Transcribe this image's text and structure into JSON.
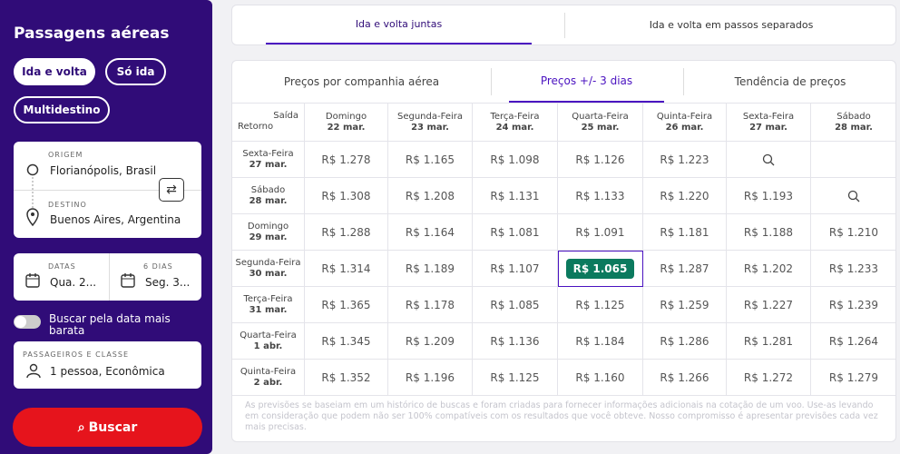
{
  "sidebar": {
    "title": "Passagens aéreas",
    "trip_types": [
      "Ida e volta",
      "Só ida",
      "Multidestino"
    ],
    "origin": {
      "label": "ORIGEM",
      "value": "Florianópolis, Brasil"
    },
    "destination": {
      "label": "DESTINO",
      "value": "Buenos Aires, Argentina"
    },
    "dates": {
      "label": "DATAS",
      "value": "Qua. 2..."
    },
    "duration": {
      "label": "6 DIAS",
      "value": "Seg. 3..."
    },
    "cheapest_toggle": "Buscar pela data mais barata",
    "passengers": {
      "label": "PASSAGEIROS E CLASSE",
      "value": "1 pessoa, Econômica"
    },
    "search_button": "Buscar"
  },
  "top_tabs": [
    "Ida e volta juntas",
    "Ida e volta em passos separados"
  ],
  "inner_tabs": [
    "Preços por companhia aérea",
    "Preços +/- 3 dias",
    "Tendência de preços"
  ],
  "table": {
    "corner": {
      "columns": "Saída",
      "rows": "Retorno"
    },
    "columns": [
      {
        "day": "Domingo",
        "date": "22 mar."
      },
      {
        "day": "Segunda-Feira",
        "date": "23 mar."
      },
      {
        "day": "Terça-Feira",
        "date": "24 mar."
      },
      {
        "day": "Quarta-Feira",
        "date": "25 mar."
      },
      {
        "day": "Quinta-Feira",
        "date": "26 mar."
      },
      {
        "day": "Sexta-Feira",
        "date": "27 mar."
      },
      {
        "day": "Sábado",
        "date": "28 mar."
      }
    ],
    "rows": [
      {
        "day": "Sexta-Feira",
        "date": "27 mar.",
        "cells": [
          "R$ 1.278",
          "R$ 1.165",
          "R$ 1.098",
          "R$ 1.126",
          "R$ 1.223",
          null
        ]
      },
      {
        "day": "Sábado",
        "date": "28 mar.",
        "cells": [
          "R$ 1.308",
          "R$ 1.208",
          "R$ 1.131",
          "R$ 1.133",
          "R$ 1.220",
          "R$ 1.193",
          null
        ]
      },
      {
        "day": "Domingo",
        "date": "29 mar.",
        "cells": [
          "R$ 1.288",
          "R$ 1.164",
          "R$ 1.081",
          "R$ 1.091",
          "R$ 1.181",
          "R$ 1.188",
          "R$ 1.210"
        ]
      },
      {
        "day": "Segunda-Feira",
        "date": "30 mar.",
        "cells": [
          "R$ 1.314",
          "R$ 1.189",
          "R$ 1.107",
          "R$ 1.065",
          "R$ 1.287",
          "R$ 1.202",
          "R$ 1.233"
        ]
      },
      {
        "day": "Terça-Feira",
        "date": "31 mar.",
        "cells": [
          "R$ 1.365",
          "R$ 1.178",
          "R$ 1.085",
          "R$ 1.125",
          "R$ 1.259",
          "R$ 1.227",
          "R$ 1.239"
        ]
      },
      {
        "day": "Quarta-Feira",
        "date": "1 abr.",
        "cells": [
          "R$ 1.345",
          "R$ 1.209",
          "R$ 1.136",
          "R$ 1.184",
          "R$ 1.286",
          "R$ 1.281",
          "R$ 1.264"
        ]
      },
      {
        "day": "Quinta-Feira",
        "date": "2 abr.",
        "cells": [
          "R$ 1.352",
          "R$ 1.196",
          "R$ 1.125",
          "R$ 1.160",
          "R$ 1.266",
          "R$ 1.272",
          "R$ 1.279"
        ]
      }
    ]
  },
  "footnote": "As previsões se baseiam em um histórico de buscas e foram criadas para fornecer informações adicionais na cotação de um voo. Use-as levando em consideração que podem não ser 100% compatíveis com os resultados que você obteve. Nosso compromisso é apresentar previsões cada vez mais precisas."
}
